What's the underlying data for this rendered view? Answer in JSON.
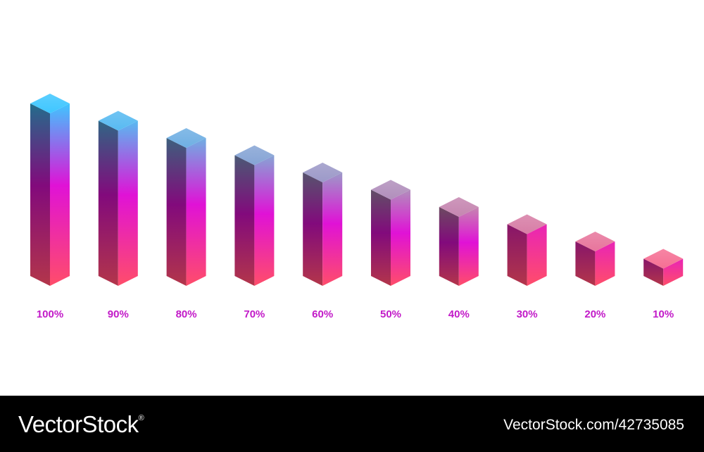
{
  "chart_data": {
    "type": "bar",
    "style": "isometric-3d",
    "categories": [
      "100%",
      "90%",
      "80%",
      "70%",
      "60%",
      "50%",
      "40%",
      "30%",
      "20%",
      "10%"
    ],
    "values": [
      100,
      90,
      80,
      70,
      60,
      50,
      40,
      30,
      20,
      10
    ],
    "title": "",
    "xlabel": "",
    "ylabel": "",
    "ylim": [
      0,
      100
    ],
    "grid": false,
    "legend": "none",
    "colors": {
      "top_start": "#3fc6ff",
      "mid": "#e012d6",
      "bottom": "#ff4d6a",
      "label": "#c21ac8"
    }
  },
  "footer": {
    "brand": "VectorStock",
    "brand_mark": "®",
    "image_id": "VectorStock.com/42735085"
  }
}
